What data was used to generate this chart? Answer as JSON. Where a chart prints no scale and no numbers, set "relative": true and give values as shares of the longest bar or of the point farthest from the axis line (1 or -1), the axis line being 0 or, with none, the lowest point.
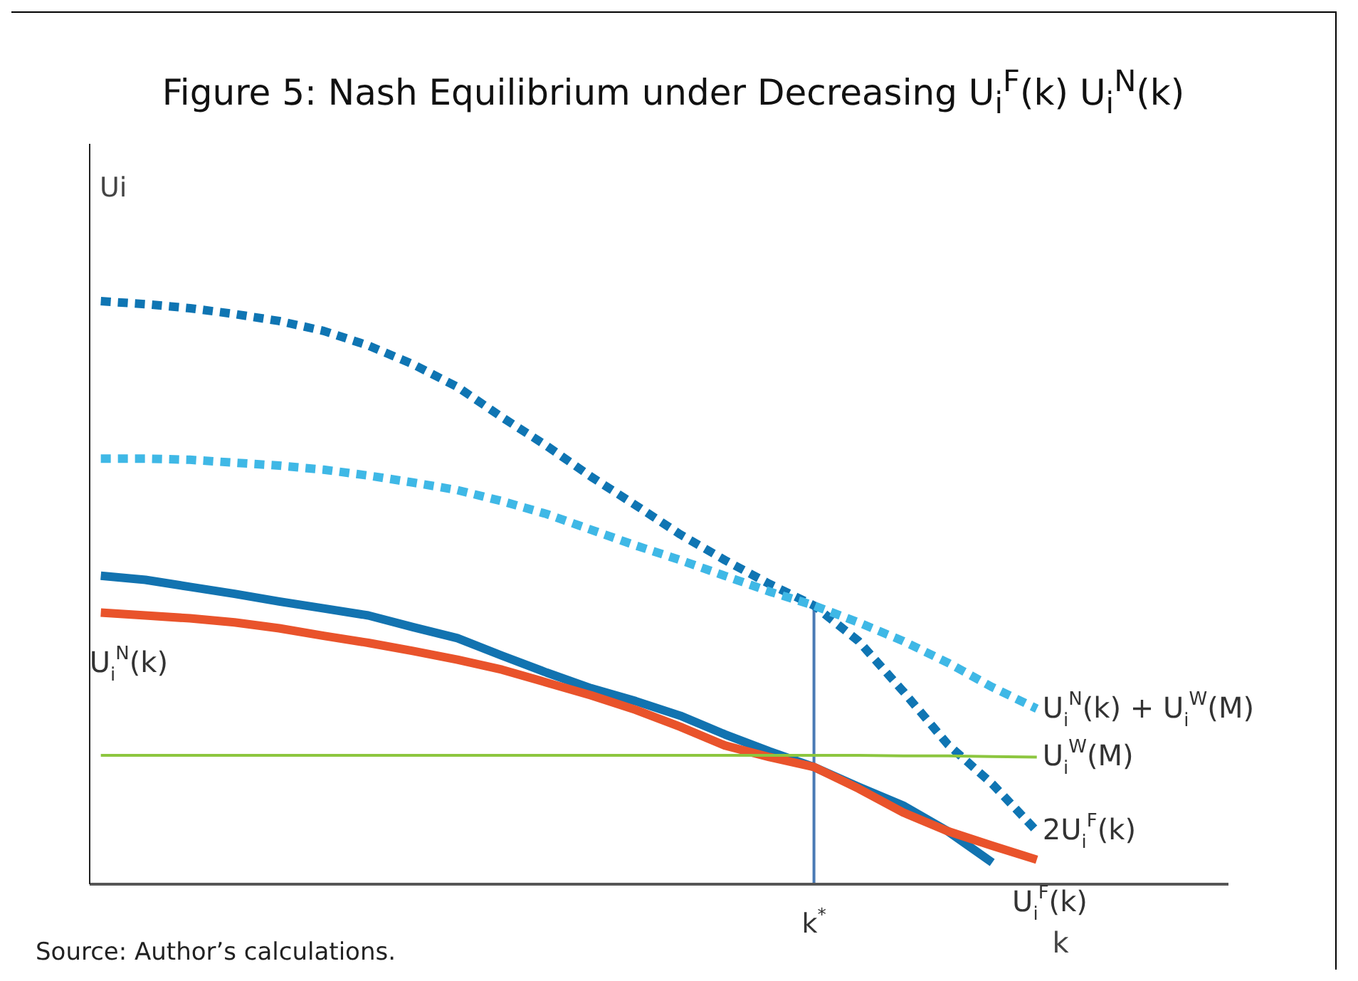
{
  "chart_data": {
    "type": "line",
    "title": "Figure 5: Nash Equilibrium under Decreasing U$_{i}$$^{F}$(k) U$_{i}$$^{N}$(k)",
    "xlabel": "k",
    "ylabel": "Ui",
    "relative": true,
    "categories": [
      null,
      null,
      null,
      null,
      null,
      null,
      null,
      null,
      null,
      null,
      null,
      null,
      null,
      null,
      null,
      null,
      null,
      null,
      null,
      null,
      null,
      null,
      null,
      null,
      null,
      null
    ],
    "series": [
      {
        "name": "2U$_{i}$$^{F}$(k)",
        "color": "#0f75b3",
        "line_style": "dotted",
        "values": [
          1,
          0.995,
          0.988,
          0.978,
          0.966,
          0.949,
          0.924,
          0.892,
          0.853,
          0.801,
          0.752,
          0.699,
          0.65,
          0.6,
          0.556,
          0.515,
          0.478,
          0.417,
          0.331,
          0.24,
          0.172,
          0.091,
          null,
          null,
          null,
          null
        ]
      },
      {
        "name": "U$_{i}$$^{N}$(k) + U$_{i}$$^{W}$(M)",
        "color": "#3fb8e6",
        "line_style": "dotted",
        "values": [
          0.73,
          0.73,
          0.728,
          0.723,
          0.718,
          0.711,
          0.701,
          0.689,
          0.676,
          0.657,
          0.635,
          0.608,
          0.581,
          0.556,
          0.529,
          0.502,
          0.478,
          0.449,
          0.417,
          0.38,
          0.338,
          0.301,
          null,
          null,
          null,
          null
        ]
      },
      {
        "name": "U$_{i}$$^{F}$(k)",
        "color": "#1273b0",
        "line_style": "solid",
        "values": [
          0.529,
          0.522,
          0.51,
          0.498,
          0.485,
          0.473,
          0.461,
          0.441,
          0.422,
          0.392,
          0.363,
          0.336,
          0.314,
          0.289,
          0.257,
          0.228,
          0.201,
          0.167,
          0.135,
          0.091,
          0.037,
          null,
          null,
          null,
          null,
          null
        ]
      },
      {
        "name": "U$_{i}$$^{N}$(k)",
        "color": "#e9532b",
        "line_style": "solid",
        "values": [
          0.466,
          0.461,
          0.456,
          0.449,
          0.439,
          0.426,
          0.414,
          0.4,
          0.385,
          0.368,
          0.346,
          0.324,
          0.299,
          0.27,
          0.238,
          0.218,
          0.201,
          0.164,
          0.123,
          0.091,
          0.066,
          0.042,
          null,
          null,
          null,
          null
        ]
      },
      {
        "name": "U$_{i}$$^{W}$(M)",
        "color": "#8cc63f",
        "line_style": "solid",
        "values": [
          0.221,
          0.221,
          0.221,
          0.221,
          0.221,
          0.221,
          0.221,
          0.221,
          0.221,
          0.221,
          0.221,
          0.221,
          0.221,
          0.221,
          0.221,
          0.221,
          0.221,
          0.221,
          0.22,
          0.22,
          0.219,
          0.218,
          null,
          null,
          null,
          null
        ]
      }
    ],
    "ref_lines": [
      {
        "axis": "x",
        "label": "k$^{*}$",
        "color": "#4a7ab5"
      }
    ],
    "annotations": [
      "Source: Author’s calculations."
    ]
  }
}
